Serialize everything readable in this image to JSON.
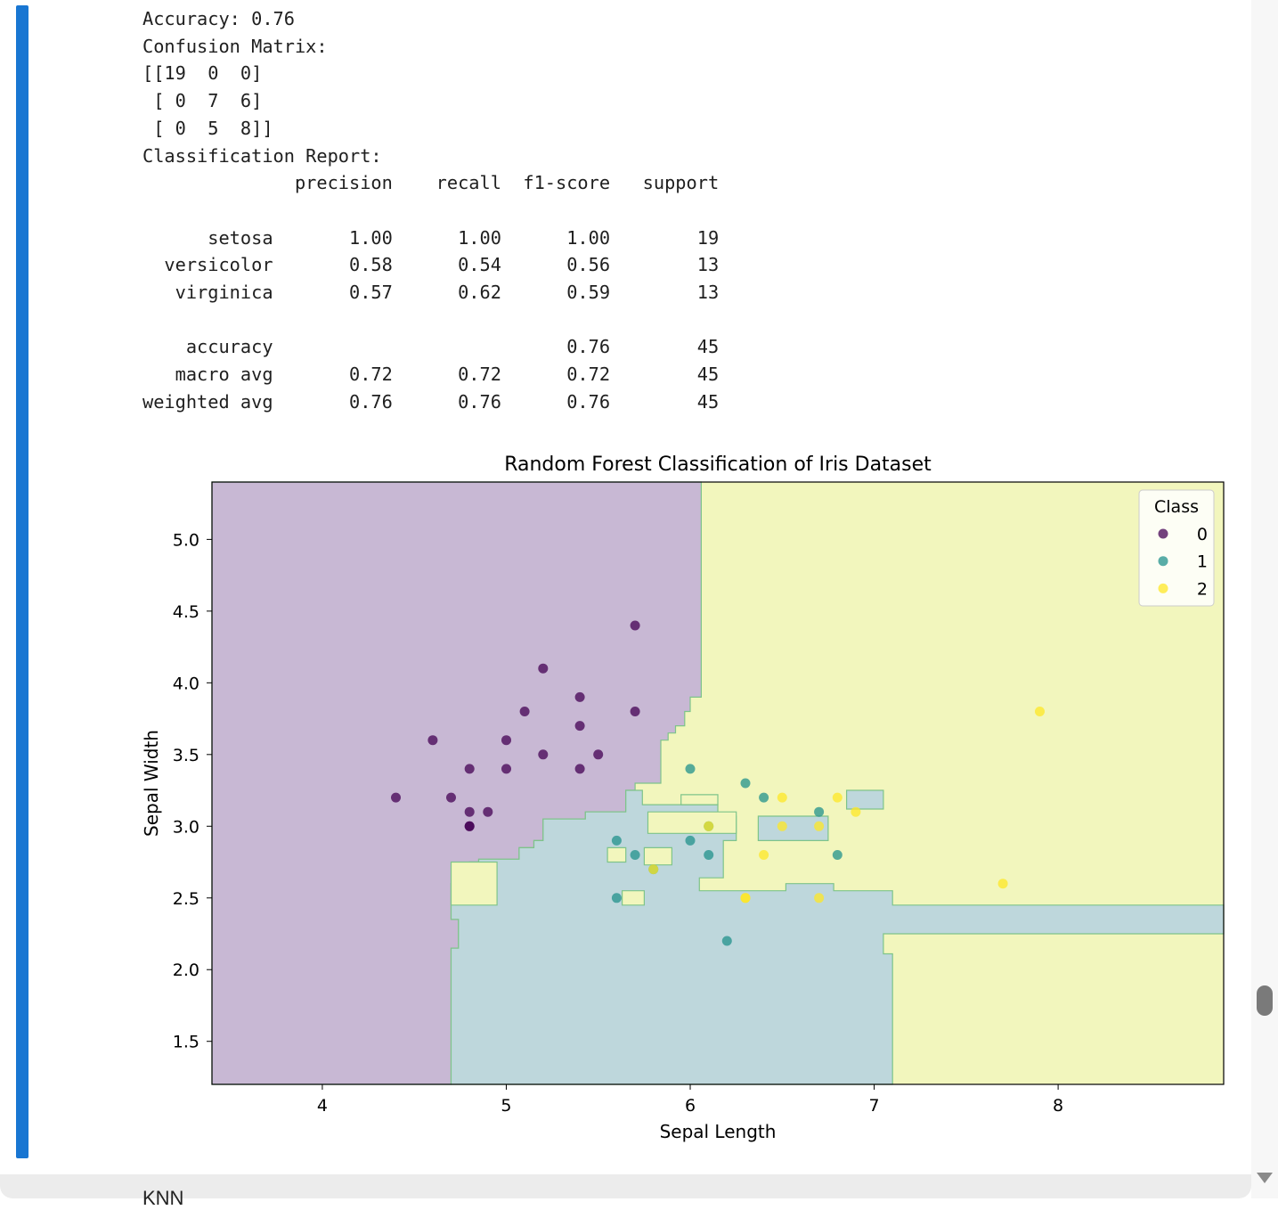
{
  "output_lines": [
    "Accuracy: 0.76",
    "Confusion Matrix:",
    "[[19  0  0]",
    " [ 0  7  6]",
    " [ 0  5  8]]",
    "Classification Report:",
    "              precision    recall  f1-score   support",
    "",
    "      setosa       1.00      1.00      1.00        19",
    "  versicolor       0.58      0.54      0.56        13",
    "   virginica       0.57      0.62      0.59        13",
    "",
    "    accuracy                           0.76        45",
    "   macro avg       0.72      0.72      0.72        45",
    "weighted avg       0.76      0.76      0.76        45"
  ],
  "next_cell_text": "KNN",
  "chart_data": {
    "type": "scatter",
    "title": "Random Forest Classification of Iris Dataset",
    "xlabel": "Sepal Length",
    "ylabel": "Sepal Width",
    "xlim": [
      3.4,
      8.9
    ],
    "ylim": [
      1.2,
      5.4
    ],
    "xticks": [
      4,
      5,
      6,
      7,
      8
    ],
    "yticks": [
      1.5,
      2.0,
      2.5,
      3.0,
      3.5,
      4.0,
      4.5,
      5.0
    ],
    "grid": false,
    "legend": {
      "title": "Class",
      "placement": "top-right",
      "entries": [
        "0",
        "1",
        "2"
      ]
    },
    "colors": {
      "0": "#440154",
      "1": "#21918c",
      "2": "#fde725"
    },
    "region_colors": {
      "0": "#c8b8d4",
      "1": "#bed7dc",
      "2": "#f2f6bd"
    },
    "region_border": "#7ec48a",
    "series": [
      {
        "name": "0",
        "points": [
          [
            4.4,
            3.2
          ],
          [
            4.6,
            3.6
          ],
          [
            4.7,
            3.2
          ],
          [
            4.8,
            3.4
          ],
          [
            4.8,
            3.1
          ],
          [
            4.8,
            3.0
          ],
          [
            4.8,
            3.0
          ],
          [
            4.9,
            3.1
          ],
          [
            5.0,
            3.6
          ],
          [
            5.0,
            3.4
          ],
          [
            5.1,
            3.8
          ],
          [
            5.2,
            4.1
          ],
          [
            5.2,
            3.5
          ],
          [
            5.4,
            3.9
          ],
          [
            5.4,
            3.7
          ],
          [
            5.4,
            3.4
          ],
          [
            5.5,
            3.5
          ],
          [
            5.7,
            4.4
          ],
          [
            5.7,
            3.8
          ]
        ]
      },
      {
        "name": "1",
        "points": [
          [
            5.6,
            2.9
          ],
          [
            5.6,
            2.5
          ],
          [
            5.7,
            2.8
          ],
          [
            5.8,
            2.7
          ],
          [
            6.0,
            3.4
          ],
          [
            6.0,
            2.9
          ],
          [
            6.1,
            2.8
          ],
          [
            6.1,
            3.0
          ],
          [
            6.2,
            2.2
          ],
          [
            6.3,
            3.3
          ],
          [
            6.4,
            3.2
          ],
          [
            6.7,
            3.1
          ],
          [
            6.8,
            2.8
          ]
        ]
      },
      {
        "name": "2",
        "points": [
          [
            6.3,
            2.5
          ],
          [
            6.4,
            2.8
          ],
          [
            6.5,
            3.2
          ],
          [
            6.5,
            3.0
          ],
          [
            6.7,
            3.0
          ],
          [
            6.7,
            2.5
          ],
          [
            6.8,
            3.2
          ],
          [
            6.9,
            3.1
          ],
          [
            7.7,
            2.6
          ],
          [
            7.9,
            3.8
          ],
          [
            6.1,
            3.0
          ],
          [
            6.3,
            2.5
          ],
          [
            5.8,
            2.7
          ]
        ]
      }
    ],
    "decision_regions": {
      "class_0": [
        [
          3.4,
          5.4
        ],
        [
          6.06,
          5.4
        ],
        [
          6.06,
          3.9
        ],
        [
          6.0,
          3.9
        ],
        [
          6.0,
          3.8
        ],
        [
          5.97,
          3.8
        ],
        [
          5.97,
          3.7
        ],
        [
          5.92,
          3.7
        ],
        [
          5.92,
          3.65
        ],
        [
          5.88,
          3.65
        ],
        [
          5.88,
          3.6
        ],
        [
          5.84,
          3.6
        ],
        [
          5.84,
          3.3
        ],
        [
          5.7,
          3.3
        ],
        [
          5.7,
          3.25
        ],
        [
          5.65,
          3.25
        ],
        [
          5.65,
          3.1
        ],
        [
          5.43,
          3.1
        ],
        [
          5.43,
          3.05
        ],
        [
          5.2,
          3.05
        ],
        [
          5.2,
          2.9
        ],
        [
          5.15,
          2.9
        ],
        [
          5.15,
          2.85
        ],
        [
          5.07,
          2.85
        ],
        [
          5.07,
          2.77
        ],
        [
          4.85,
          2.77
        ],
        [
          4.85,
          2.75
        ],
        [
          4.8,
          2.75
        ],
        [
          4.8,
          2.7
        ],
        [
          4.77,
          2.7
        ],
        [
          4.77,
          2.65
        ],
        [
          4.74,
          2.65
        ],
        [
          4.74,
          2.6
        ],
        [
          4.7,
          2.6
        ],
        [
          4.7,
          2.35
        ],
        [
          4.74,
          2.35
        ],
        [
          4.74,
          2.15
        ],
        [
          4.7,
          2.15
        ],
        [
          4.7,
          1.2
        ],
        [
          3.4,
          1.2
        ]
      ],
      "class_1": [
        [
          4.7,
          2.6
        ],
        [
          4.74,
          2.6
        ],
        [
          4.74,
          2.65
        ],
        [
          4.77,
          2.65
        ],
        [
          4.77,
          2.7
        ],
        [
          4.8,
          2.7
        ],
        [
          4.8,
          2.75
        ],
        [
          4.85,
          2.75
        ],
        [
          4.85,
          2.77
        ],
        [
          5.07,
          2.77
        ],
        [
          5.07,
          2.85
        ],
        [
          5.15,
          2.85
        ],
        [
          5.15,
          2.9
        ],
        [
          5.2,
          2.9
        ],
        [
          5.2,
          3.05
        ],
        [
          5.43,
          3.05
        ],
        [
          5.43,
          3.1
        ],
        [
          5.65,
          3.1
        ],
        [
          5.65,
          3.25
        ],
        [
          5.74,
          3.25
        ],
        [
          5.74,
          3.15
        ],
        [
          6.15,
          3.15
        ],
        [
          6.15,
          3.07
        ],
        [
          6.25,
          3.07
        ],
        [
          6.25,
          2.9
        ],
        [
          6.18,
          2.9
        ],
        [
          6.18,
          2.64
        ],
        [
          6.05,
          2.64
        ],
        [
          6.05,
          2.55
        ],
        [
          6.52,
          2.55
        ],
        [
          6.52,
          2.6
        ],
        [
          6.78,
          2.6
        ],
        [
          6.78,
          2.55
        ],
        [
          7.1,
          2.55
        ],
        [
          7.1,
          2.45
        ],
        [
          8.9,
          2.45
        ],
        [
          8.9,
          2.25
        ],
        [
          7.05,
          2.25
        ],
        [
          7.05,
          2.11
        ],
        [
          7.1,
          2.11
        ],
        [
          7.1,
          1.2
        ],
        [
          4.7,
          1.2
        ],
        [
          4.7,
          2.15
        ],
        [
          4.74,
          2.15
        ],
        [
          4.74,
          2.35
        ],
        [
          4.7,
          2.35
        ]
      ],
      "class_1_islands": [
        [
          [
            6.85,
            3.12
          ],
          [
            7.05,
            3.12
          ],
          [
            7.05,
            3.25
          ],
          [
            6.85,
            3.25
          ]
        ],
        [
          [
            6.37,
            2.9
          ],
          [
            6.75,
            2.9
          ],
          [
            6.75,
            3.07
          ],
          [
            6.37,
            3.07
          ]
        ]
      ],
      "class_2_islands_in_0": [
        [
          [
            4.7,
            2.45
          ],
          [
            4.95,
            2.45
          ],
          [
            4.95,
            2.75
          ],
          [
            4.7,
            2.75
          ]
        ]
      ],
      "class_2_islands_in_1": [
        [
          [
            5.55,
            2.75
          ],
          [
            5.65,
            2.75
          ],
          [
            5.65,
            2.85
          ],
          [
            5.55,
            2.85
          ]
        ],
        [
          [
            5.75,
            2.73
          ],
          [
            5.9,
            2.73
          ],
          [
            5.9,
            2.85
          ],
          [
            5.75,
            2.85
          ]
        ],
        [
          [
            5.63,
            2.45
          ],
          [
            5.75,
            2.45
          ],
          [
            5.75,
            2.55
          ],
          [
            5.63,
            2.55
          ]
        ],
        [
          [
            5.77,
            2.95
          ],
          [
            6.25,
            2.95
          ],
          [
            6.25,
            3.1
          ],
          [
            5.77,
            3.1
          ]
        ],
        [
          [
            5.95,
            3.15
          ],
          [
            6.15,
            3.15
          ],
          [
            6.15,
            3.22
          ],
          [
            5.95,
            3.22
          ]
        ]
      ]
    }
  }
}
